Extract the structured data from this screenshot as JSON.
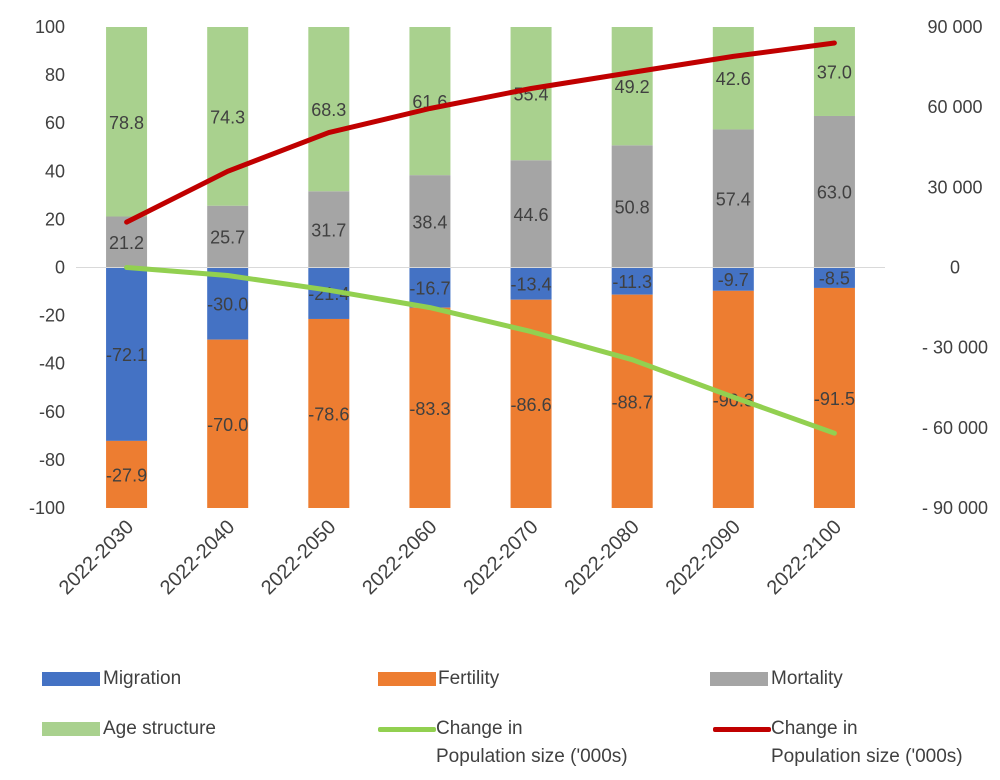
{
  "chart_data": {
    "type": "bar",
    "stacked": true,
    "categories": [
      "2022-2030",
      "2022-2040",
      "2022-2050",
      "2022-2060",
      "2022-2070",
      "2022-2080",
      "2022-2090",
      "2022-2100"
    ],
    "series": [
      {
        "name": "Migration",
        "color": "#4472C4",
        "values": [
          -72.1,
          -30.0,
          -21.4,
          -16.7,
          -13.4,
          -11.3,
          -9.7,
          -8.5
        ]
      },
      {
        "name": "Fertility",
        "color": "#ED7D31",
        "values": [
          -27.9,
          -70.0,
          -78.6,
          -83.3,
          -86.6,
          -88.7,
          -90.3,
          -91.5
        ]
      },
      {
        "name": "Mortality",
        "color": "#A5A5A5",
        "values": [
          21.2,
          25.7,
          31.7,
          38.4,
          44.6,
          50.8,
          57.4,
          63.0
        ]
      },
      {
        "name": "Age structure",
        "color": "#A9D18E",
        "values": [
          78.8,
          74.3,
          68.3,
          61.6,
          55.4,
          49.2,
          42.6,
          37.0
        ]
      }
    ],
    "value_labels": [
      [
        "-72.1",
        "-30.0",
        "-21.4",
        "-16.7",
        "-13.4",
        "-11.3",
        "-9.7",
        "-8.5"
      ],
      [
        "-27.9",
        "-70.0",
        "-78.6",
        "-83.3",
        "-86.6",
        "-88.7",
        "-90.3",
        "-91.5"
      ],
      [
        "21.2",
        "25.7",
        "31.7",
        "38.4",
        "44.6",
        "50.8",
        "57.4",
        "63.0"
      ],
      [
        "78.8",
        "74.3",
        "68.3",
        "61.6",
        "55.4",
        "49.2",
        "42.6",
        "37.0"
      ]
    ],
    "lines": [
      {
        "name": "Change in Population size ('000s)",
        "color": "#92D050",
        "axis": "right",
        "values": [
          0,
          -3000,
          -8500,
          -15000,
          -24000,
          -34500,
          -48500,
          -62000
        ]
      },
      {
        "name": "Change in Population size ('000s)",
        "color": "#C00000",
        "axis": "right",
        "values": [
          17000,
          36000,
          50500,
          59500,
          67000,
          73000,
          79000,
          84000
        ]
      }
    ],
    "ylim": [
      -100,
      100
    ],
    "y_ticks": [
      100,
      80,
      60,
      40,
      20,
      0,
      -20,
      -40,
      -60,
      -80,
      -100
    ],
    "y_tick_labels": [
      "100",
      "80",
      "60",
      "40",
      "20",
      "0",
      "-20",
      "-40",
      "-60",
      "-80",
      "-100"
    ],
    "y2lim": [
      -90000,
      90000
    ],
    "y2_ticks": [
      90000,
      60000,
      30000,
      0,
      -30000,
      -60000,
      -90000
    ],
    "y2_tick_labels": [
      "90 000",
      "60 000",
      "30 000",
      "0",
      "- 30 000",
      "- 60 000",
      "- 90 000"
    ],
    "grid": false,
    "legend_position": "bottom"
  },
  "legend": {
    "migration": "Migration",
    "fertility": "Fertility",
    "mortality": "Mortality",
    "age_structure": "Age structure",
    "green_line_1": "Change in",
    "green_line_2": "Population size ('000s)",
    "red_line_1": "Change in",
    "red_line_2": "Population size ('000s)"
  }
}
